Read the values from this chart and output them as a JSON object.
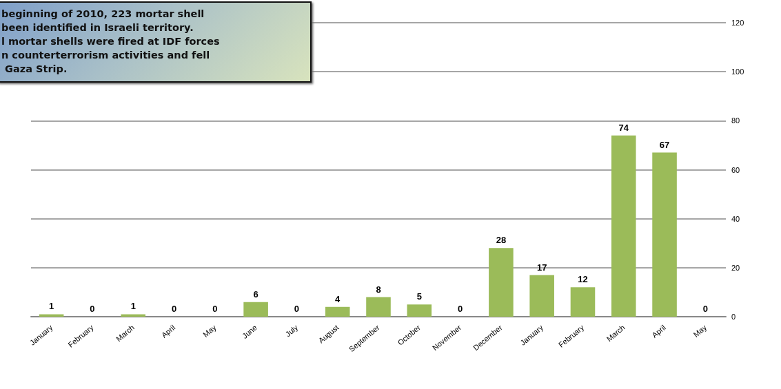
{
  "chart_data": {
    "type": "bar",
    "categories": [
      "January",
      "February",
      "March",
      "April",
      "May",
      "June",
      "July",
      "August",
      "September",
      "October",
      "November",
      "December",
      "January",
      "February",
      "March",
      "April",
      "May"
    ],
    "values": [
      1,
      0,
      1,
      0,
      0,
      6,
      0,
      4,
      8,
      5,
      0,
      28,
      17,
      12,
      74,
      67,
      0
    ],
    "color": "#9bbb59",
    "ylim": [
      0,
      120
    ],
    "yticks": [
      0,
      20,
      40,
      60,
      80,
      100,
      120
    ],
    "grid": "y",
    "data_labels": true,
    "annotations": [
      "beginning of 2010, 223 mortar shell\nbeen identified in Israeli territory.\nl mortar shells were fired at IDF forces\nn counterterrorism activities and fell\n Gaza Strip."
    ]
  }
}
